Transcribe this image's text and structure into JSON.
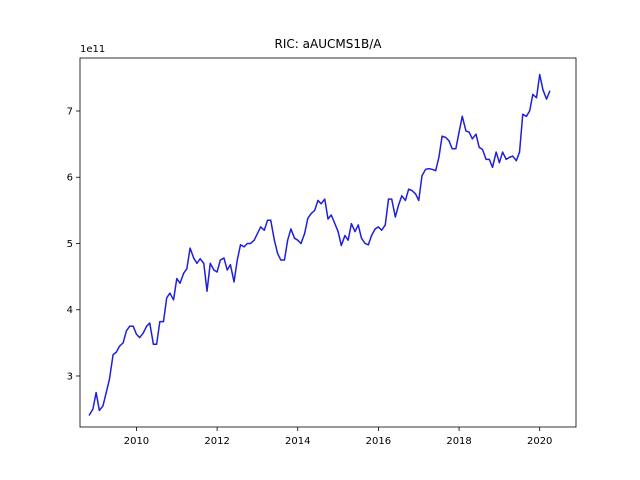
{
  "chart_data": {
    "type": "line",
    "title": "RIC: aAUCMS1B/A",
    "xlabel": "",
    "ylabel": "",
    "y_offset_label": "1e11",
    "xlim": [
      2008.6,
      2020.9
    ],
    "ylim": [
      2.23,
      7.8
    ],
    "x_ticks": [
      2010,
      2012,
      2014,
      2016,
      2018,
      2020
    ],
    "x_tick_labels": [
      "2010",
      "2012",
      "2014",
      "2016",
      "2018",
      "2020"
    ],
    "y_ticks": [
      3,
      4,
      5,
      6,
      7
    ],
    "y_tick_labels": [
      "3",
      "4",
      "5",
      "6",
      "7"
    ],
    "grid": false,
    "line_color": "#1f1fdd",
    "series": [
      {
        "x": [
          2008.83,
          2008.92,
          2009.0,
          2009.08,
          2009.17,
          2009.25,
          2009.33,
          2009.42,
          2009.5,
          2009.58,
          2009.67,
          2009.75,
          2009.83,
          2009.92,
          2010.0,
          2010.08,
          2010.17,
          2010.25,
          2010.33,
          2010.42,
          2010.5,
          2010.58,
          2010.67,
          2010.75,
          2010.83,
          2010.92,
          2011.0,
          2011.08,
          2011.17,
          2011.25,
          2011.33,
          2011.42,
          2011.5,
          2011.58,
          2011.67,
          2011.75,
          2011.83,
          2011.92,
          2012.0,
          2012.08,
          2012.17,
          2012.25,
          2012.33,
          2012.42,
          2012.5,
          2012.58,
          2012.67,
          2012.75,
          2012.83,
          2012.92,
          2013.0,
          2013.08,
          2013.17,
          2013.25,
          2013.33,
          2013.42,
          2013.5,
          2013.58,
          2013.67,
          2013.75,
          2013.83,
          2013.92,
          2014.0,
          2014.08,
          2014.17,
          2014.25,
          2014.33,
          2014.42,
          2014.5,
          2014.58,
          2014.67,
          2014.75,
          2014.83,
          2014.92,
          2015.0,
          2015.08,
          2015.17,
          2015.25,
          2015.33,
          2015.42,
          2015.5,
          2015.58,
          2015.67,
          2015.75,
          2015.83,
          2015.92,
          2016.0,
          2016.08,
          2016.17,
          2016.25,
          2016.33,
          2016.42,
          2016.5,
          2016.58,
          2016.67,
          2016.75,
          2016.83,
          2016.92,
          2017.0,
          2017.08,
          2017.17,
          2017.25,
          2017.33,
          2017.42,
          2017.5,
          2017.58,
          2017.67,
          2017.75,
          2017.83,
          2017.92,
          2018.0,
          2018.08,
          2018.17,
          2018.25,
          2018.33,
          2018.42,
          2018.5,
          2018.58,
          2018.67,
          2018.75,
          2018.83,
          2018.92,
          2019.0,
          2019.08,
          2019.17,
          2019.25,
          2019.33,
          2019.42,
          2019.5,
          2019.58,
          2019.67,
          2019.75,
          2019.83,
          2019.92,
          2020.0,
          2020.08,
          2020.17,
          2020.25
        ],
        "values": [
          2.41,
          2.5,
          2.75,
          2.48,
          2.55,
          2.75,
          2.95,
          3.32,
          3.36,
          3.45,
          3.5,
          3.68,
          3.75,
          3.75,
          3.63,
          3.58,
          3.65,
          3.75,
          3.8,
          3.48,
          3.48,
          3.82,
          3.82,
          4.18,
          4.25,
          4.15,
          4.47,
          4.4,
          4.55,
          4.62,
          4.93,
          4.78,
          4.7,
          4.77,
          4.7,
          4.28,
          4.7,
          4.6,
          4.57,
          4.75,
          4.78,
          4.6,
          4.68,
          4.42,
          4.75,
          4.98,
          4.95,
          5.0,
          5.0,
          5.05,
          5.15,
          5.25,
          5.2,
          5.35,
          5.35,
          5.05,
          4.85,
          4.75,
          4.75,
          5.05,
          5.22,
          5.08,
          5.05,
          5.0,
          5.15,
          5.38,
          5.45,
          5.5,
          5.65,
          5.6,
          5.67,
          5.37,
          5.43,
          5.3,
          5.18,
          4.97,
          5.12,
          5.05,
          5.3,
          5.18,
          5.28,
          5.08,
          5.0,
          4.98,
          5.12,
          5.22,
          5.25,
          5.2,
          5.28,
          5.67,
          5.67,
          5.4,
          5.58,
          5.72,
          5.65,
          5.82,
          5.8,
          5.75,
          5.65,
          6.02,
          6.12,
          6.13,
          6.12,
          6.1,
          6.3,
          6.62,
          6.6,
          6.55,
          6.43,
          6.43,
          6.68,
          6.92,
          6.7,
          6.68,
          6.58,
          6.65,
          6.45,
          6.42,
          6.27,
          6.27,
          6.15,
          6.38,
          6.22,
          6.38,
          6.27,
          6.3,
          6.32,
          6.25,
          6.38,
          6.95,
          6.92,
          7.0,
          7.25,
          7.2,
          7.55,
          7.32,
          7.18,
          7.3
        ]
      }
    ]
  }
}
